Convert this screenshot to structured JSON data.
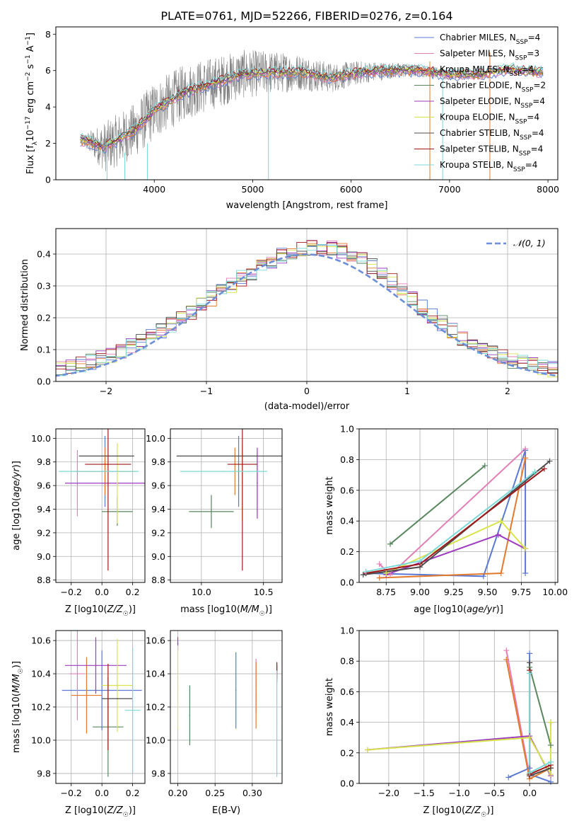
{
  "title": "PLATE=0761, MJD=52266, FIBERID=0276, z=0.164",
  "colors": {
    "Chabrier MILES": "#5b79d2",
    "Salpeter MILES": "#e27fb6",
    "Kroupa MILES": "#e2792d",
    "Chabrier ELODIE": "#58875f",
    "Salpeter ELODIE": "#9c3bbf",
    "Kroupa ELODIE": "#d7e44d",
    "Chabrier STELIB": "#4d4d4d",
    "Salpeter STELIB": "#a01919",
    "Kroupa STELIB": "#7bd9d9",
    "data": "#7f7f7f",
    "gaussian": "#6d8fd8"
  },
  "chart_data": [
    {
      "id": "spectrum",
      "type": "line",
      "xlabel": "wavelength [Angstrom, rest frame]",
      "ylabel": "Flux [f_λ 10^-17 erg cm^-2 s^-1 A^-1]",
      "xlim": [
        3000,
        8100
      ],
      "ylim": [
        0,
        8.4
      ],
      "xticks": [
        4000,
        5000,
        6000,
        7000,
        8000
      ],
      "yticks": [
        0,
        2,
        4,
        6,
        8
      ],
      "legend_placement": "top-right",
      "legend": [
        "Chabrier MILES, N_SSP=4",
        "Salpeter MILES, N_SSP=3",
        "Kroupa MILES, N_SSP=4",
        "Chabrier ELODIE, N_SSP=2",
        "Salpeter ELODIE, N_SSP=4",
        "Kroupa ELODIE, N_SSP=4",
        "Chabrier STELIB, N_SSP=4",
        "Salpeter STELIB, N_SSP=4",
        "Kroupa STELIB, N_SSP=4"
      ],
      "model_trend": {
        "x": [
          3250,
          3500,
          3800,
          4000,
          4300,
          4600,
          4900,
          5200,
          5500,
          5800,
          6100,
          6400,
          6700,
          7000,
          7300,
          7600,
          7900
        ],
        "y": [
          2.2,
          1.8,
          2.7,
          3.8,
          4.8,
          5.3,
          5.8,
          5.9,
          5.9,
          5.6,
          5.9,
          6.0,
          6.0,
          5.8,
          5.8,
          6.1,
          5.9
        ]
      },
      "data_noise_sigma": {
        "x": [
          3250,
          3500,
          4000,
          4500,
          5000,
          5500,
          6000,
          6500,
          7000,
          7500,
          8000
        ],
        "y": [
          0.2,
          1.4,
          1.6,
          1.5,
          1.3,
          1.0,
          0.7,
          0.4,
          0.3,
          0.2,
          0.2
        ]
      }
    },
    {
      "id": "residuals",
      "type": "line",
      "xlabel": "(data-model)/error",
      "ylabel": "Normed distribution",
      "xlim": [
        -2.5,
        2.5
      ],
      "ylim": [
        0,
        0.48
      ],
      "xticks": [
        -2,
        -1,
        0,
        1,
        2
      ],
      "yticks": [
        0.0,
        0.1,
        0.2,
        0.3,
        0.4
      ],
      "grid": true,
      "legend": [
        "N(0,1)"
      ],
      "legend_placement": "top-right",
      "hist_bins": {
        "start": -2.5,
        "width": 0.1,
        "count": 50
      }
    },
    {
      "id": "age-vs-z",
      "type": "scatter",
      "xlabel": "Z [log10(Z/Z☉)]",
      "ylabel": "age [log10(age/yr)]",
      "xlim": [
        -0.3,
        0.28
      ],
      "ylim": [
        8.78,
        10.08
      ],
      "xticks": [
        -0.2,
        0.0,
        0.2
      ],
      "yticks": [
        8.8,
        9.0,
        9.2,
        9.4,
        9.6,
        9.8,
        10.0
      ],
      "grid": true,
      "points": [
        {
          "model": "Chabrier MILES",
          "x": 0.02,
          "y": 9.72,
          "xerr": 0.0,
          "yerr": 0.3
        },
        {
          "model": "Salpeter MILES",
          "x": -0.16,
          "y": 9.62,
          "xerr": 0.0,
          "yerr": 0.28
        },
        {
          "model": "Kroupa MILES",
          "x": 0.02,
          "y": 9.72,
          "xerr": 0.2,
          "yerr": 0.2
        },
        {
          "model": "Chabrier ELODIE",
          "x": 0.1,
          "y": 9.38,
          "xerr": 0.1,
          "yerr": 0.12
        },
        {
          "model": "Salpeter ELODIE",
          "x": 0.02,
          "y": 9.62,
          "xerr": 0.26,
          "yerr": 0.0
        },
        {
          "model": "Kroupa ELODIE",
          "x": 0.1,
          "y": 9.62,
          "xerr": 0.0,
          "yerr": 0.34
        },
        {
          "model": "Chabrier STELIB",
          "x": 0.03,
          "y": 9.85,
          "xerr": 0.18,
          "yerr": 0.0
        },
        {
          "model": "Salpeter STELIB",
          "x": 0.04,
          "y": 9.78,
          "xerr": 0.15,
          "yerr": 0.9
        },
        {
          "model": "Kroupa STELIB",
          "x": -0.02,
          "y": 9.72,
          "xerr": 0.26,
          "yerr": 0.0
        }
      ]
    },
    {
      "id": "age-vs-mass",
      "type": "scatter",
      "xlabel": "mass [log10(M/M☉)]",
      "ylabel": "",
      "xlim": [
        9.75,
        10.65
      ],
      "ylim": [
        8.78,
        10.08
      ],
      "xticks": [
        10.0,
        10.5
      ],
      "yticks": [
        8.8,
        9.0,
        9.2,
        9.4,
        9.6,
        9.8,
        10.0
      ],
      "grid": true,
      "points": [
        {
          "model": "Chabrier MILES",
          "x": 10.3,
          "y": 9.72,
          "xerr": 0.0,
          "yerr": 0.3
        },
        {
          "model": "Salpeter MILES",
          "x": 10.45,
          "y": 9.62,
          "xerr": 0.0,
          "yerr": 0.26
        },
        {
          "model": "Kroupa MILES",
          "x": 10.27,
          "y": 9.72,
          "xerr": 0.0,
          "yerr": 0.2
        },
        {
          "model": "Chabrier ELODIE",
          "x": 10.08,
          "y": 9.38,
          "xerr": 0.18,
          "yerr": 0.14
        },
        {
          "model": "Salpeter ELODIE",
          "x": 10.45,
          "y": 9.62,
          "xerr": 0.0,
          "yerr": 0.3
        },
        {
          "model": "Kroupa ELODIE",
          "x": 10.33,
          "y": 9.62,
          "xerr": 0.0,
          "yerr": 0.32
        },
        {
          "model": "Chabrier STELIB",
          "x": 10.25,
          "y": 9.85,
          "xerr": 0.45,
          "yerr": 0.0
        },
        {
          "model": "Salpeter STELIB",
          "x": 10.33,
          "y": 9.78,
          "xerr": 0.12,
          "yerr": 0.9
        },
        {
          "model": "Kroupa STELIB",
          "x": 10.18,
          "y": 9.72,
          "xerr": 0.35,
          "yerr": 0.0
        }
      ]
    },
    {
      "id": "massweight-vs-age",
      "type": "line",
      "xlabel": "age [log10(age/yr)]",
      "ylabel": "mass weight",
      "xlim": [
        8.55,
        10.02
      ],
      "ylim": [
        0,
        1.0
      ],
      "xticks": [
        8.75,
        9.0,
        9.25,
        9.5,
        9.75,
        10.0
      ],
      "yticks": [
        0.0,
        0.2,
        0.4,
        0.6,
        0.8,
        1.0
      ],
      "grid": true,
      "series": [
        {
          "name": "Chabrier MILES",
          "x": [
            8.6,
            9.47,
            9.78,
            9.78
          ],
          "y": [
            0.06,
            0.04,
            0.86,
            0.06
          ]
        },
        {
          "name": "Salpeter MILES",
          "x": [
            8.7,
            8.78,
            9.78
          ],
          "y": [
            0.12,
            0.05,
            0.87
          ]
        },
        {
          "name": "Kroupa MILES",
          "x": [
            8.7,
            9.6,
            9.78
          ],
          "y": [
            0.03,
            0.06,
            0.81
          ]
        },
        {
          "name": "Chabrier ELODIE",
          "x": [
            8.78,
            9.48
          ],
          "y": [
            0.25,
            0.76
          ]
        },
        {
          "name": "Salpeter ELODIE",
          "x": [
            8.75,
            9.58,
            9.78
          ],
          "y": [
            0.05,
            0.31,
            0.22
          ]
        },
        {
          "name": "Kroupa ELODIE",
          "x": [
            8.75,
            9.6,
            9.78
          ],
          "y": [
            0.06,
            0.4,
            0.22
          ]
        },
        {
          "name": "Chabrier STELIB",
          "x": [
            8.58,
            9.0,
            9.96
          ],
          "y": [
            0.05,
            0.1,
            0.79
          ]
        },
        {
          "name": "Salpeter STELIB",
          "x": [
            8.6,
            9.0,
            9.92
          ],
          "y": [
            0.06,
            0.12,
            0.74
          ]
        },
        {
          "name": "Kroupa STELIB",
          "x": [
            8.6,
            9.0,
            9.85
          ],
          "y": [
            0.07,
            0.14,
            0.72
          ]
        }
      ]
    },
    {
      "id": "mass-vs-z",
      "type": "scatter",
      "xlabel": "Z [log10(Z/Z☉)]",
      "ylabel": "mass [log10(M/M☉)]",
      "xlim": [
        -0.3,
        0.28
      ],
      "ylim": [
        9.74,
        10.66
      ],
      "xticks": [
        -0.2,
        0.0,
        0.2
      ],
      "yticks": [
        9.8,
        10.0,
        10.2,
        10.4,
        10.6
      ],
      "grid": true,
      "points": [
        {
          "model": "Chabrier MILES",
          "x": 0.0,
          "y": 10.3,
          "xerr": 0.26,
          "yerr": 0.24
        },
        {
          "model": "Salpeter MILES",
          "x": -0.16,
          "y": 10.4,
          "xerr": 0.05,
          "yerr": 0.28
        },
        {
          "model": "Kroupa MILES",
          "x": -0.1,
          "y": 10.27,
          "xerr": 0.1,
          "yerr": 0.23
        },
        {
          "model": "Chabrier ELODIE",
          "x": 0.04,
          "y": 10.08,
          "xerr": 0.1,
          "yerr": 0.3
        },
        {
          "model": "Salpeter ELODIE",
          "x": -0.04,
          "y": 10.45,
          "xerr": 0.2,
          "yerr": 0.17
        },
        {
          "model": "Kroupa ELODIE",
          "x": 0.1,
          "y": 10.33,
          "xerr": 0.1,
          "yerr": 0.28
        },
        {
          "model": "Chabrier STELIB",
          "x": 0.1,
          "y": 10.25,
          "xerr": 0.1,
          "yerr": 0.0
        },
        {
          "model": "Salpeter STELIB",
          "x": 0.04,
          "y": 10.2,
          "xerr": 0.0,
          "yerr": 0.26
        },
        {
          "model": "Kroupa STELIB",
          "x": 0.2,
          "y": 10.18,
          "xerr": 0.05,
          "yerr": 0.38
        }
      ]
    },
    {
      "id": "mass-vs-ebv",
      "type": "scatter",
      "xlabel": "E(B-V)",
      "ylabel": "",
      "xlim": [
        0.19,
        0.34
      ],
      "ylim": [
        9.74,
        10.66
      ],
      "xticks": [
        0.2,
        0.25,
        0.3
      ],
      "yticks": [
        9.8,
        10.0,
        10.2,
        10.4,
        10.6
      ],
      "grid": true,
      "points": [
        {
          "model": "Chabrier MILES",
          "x": 0.278,
          "y": 10.3,
          "xerr": 0.0,
          "yerr": 0.23
        },
        {
          "model": "Salpeter MILES",
          "x": 0.305,
          "y": 10.33,
          "xerr": 0.0,
          "yerr": 0.16
        },
        {
          "model": "Kroupa MILES",
          "x": 0.305,
          "y": 10.27,
          "xerr": 0.0,
          "yerr": 0.2
        },
        {
          "model": "Chabrier ELODIE",
          "x": 0.216,
          "y": 10.15,
          "xerr": 0.0,
          "yerr": 0.18
        },
        {
          "model": "Salpeter ELODIE",
          "x": 0.2,
          "y": 10.58,
          "xerr": 0.0,
          "yerr": 0.04
        },
        {
          "model": "Kroupa ELODIE",
          "x": 0.2,
          "y": 10.32,
          "xerr": 0.0,
          "yerr": 0.25
        },
        {
          "model": "Chabrier STELIB",
          "x": 0.333,
          "y": 10.4,
          "xerr": 0.0,
          "yerr": 0.05
        },
        {
          "model": "Salpeter STELIB",
          "x": 0.333,
          "y": 10.42,
          "xerr": 0.0,
          "yerr": 0.05
        },
        {
          "model": "Kroupa STELIB",
          "x": 0.333,
          "y": 10.1,
          "xerr": 0.0,
          "yerr": 0.32
        }
      ]
    },
    {
      "id": "massweight-vs-z",
      "type": "line",
      "xlabel": "Z [log10(Z/Z☉)]",
      "ylabel": "mass weight",
      "xlim": [
        -2.42,
        0.4
      ],
      "ylim": [
        0,
        1.0
      ],
      "xticks": [
        -2.0,
        -1.5,
        -1.0,
        -0.5,
        0.0
      ],
      "yticks": [
        0.0,
        0.2,
        0.4,
        0.6,
        0.8,
        1.0
      ],
      "grid": true,
      "series": [
        {
          "name": "Chabrier MILES",
          "x": [
            -0.3,
            0.0,
            0.0,
            0.0,
            0.3
          ],
          "y": [
            0.04,
            0.1,
            0.85,
            0.06,
            0.01
          ]
        },
        {
          "name": "Salpeter MILES",
          "x": [
            -0.33,
            0.0,
            0.0
          ],
          "y": [
            0.87,
            0.05,
            0.05
          ]
        },
        {
          "name": "Kroupa MILES",
          "x": [
            -0.33,
            0.0,
            0.3,
            0.3
          ],
          "y": [
            0.81,
            0.03,
            0.1,
            0.06
          ]
        },
        {
          "name": "Chabrier ELODIE",
          "x": [
            0.0,
            0.3
          ],
          "y": [
            0.76,
            0.25
          ]
        },
        {
          "name": "Salpeter ELODIE",
          "x": [
            -2.3,
            0.0,
            0.3,
            0.3
          ],
          "y": [
            0.22,
            0.31,
            0.05,
            0.4
          ]
        },
        {
          "name": "Kroupa ELODIE",
          "x": [
            -2.3,
            0.0,
            0.3,
            0.3
          ],
          "y": [
            0.22,
            0.3,
            0.06,
            0.4
          ]
        },
        {
          "name": "Chabrier STELIB",
          "x": [
            0.0,
            0.0,
            0.3
          ],
          "y": [
            0.79,
            0.05,
            0.1
          ]
        },
        {
          "name": "Salpeter STELIB",
          "x": [
            0.0,
            0.0,
            0.3
          ],
          "y": [
            0.74,
            0.06,
            0.12
          ]
        },
        {
          "name": "Kroupa STELIB",
          "x": [
            0.0,
            0.0,
            0.3
          ],
          "y": [
            0.72,
            0.07,
            0.14
          ]
        }
      ]
    }
  ]
}
